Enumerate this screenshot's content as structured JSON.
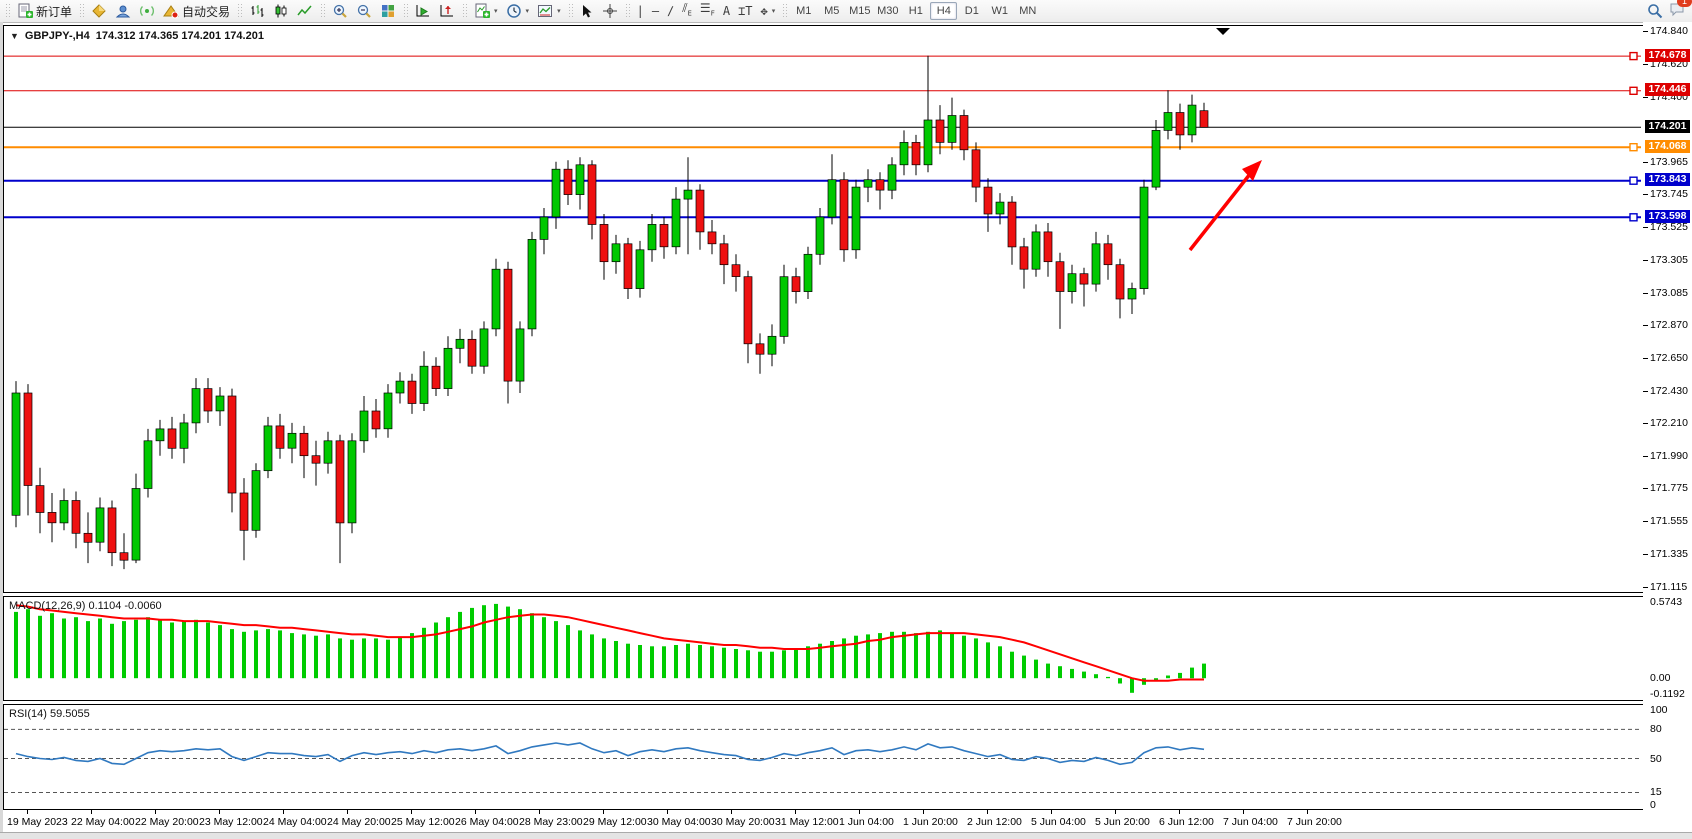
{
  "toolbar": {
    "new_order_label": "新订单",
    "autotrade_label": "自动交易",
    "dropdown_glyph": "▾",
    "timeframes": [
      "M1",
      "M5",
      "M15",
      "M30",
      "H1",
      "H4",
      "D1",
      "W1",
      "MN"
    ],
    "active_timeframe": "H4",
    "notification_count": "1"
  },
  "chart_header": {
    "toggle_glyph": "▼",
    "symbol_period": "GBPJPY-,H4",
    "ohlc": "174.312 174.365 174.201 174.201"
  },
  "price_axis": {
    "ticks": [
      "174.840",
      "174.620",
      "174.400",
      "173.965",
      "173.745",
      "173.525",
      "173.305",
      "173.085",
      "172.870",
      "172.650",
      "172.430",
      "172.210",
      "171.990",
      "171.775",
      "171.555",
      "171.335",
      "171.115"
    ],
    "tags": [
      {
        "value": "174.678",
        "color": "#dd0000"
      },
      {
        "value": "174.446",
        "color": "#dd0000"
      },
      {
        "value": "174.201",
        "color": "#000000"
      },
      {
        "value": "174.068",
        "color": "#ff8c00"
      },
      {
        "value": "173.843",
        "color": "#0000cc"
      },
      {
        "value": "173.598",
        "color": "#0000cc"
      }
    ]
  },
  "time_axis": {
    "labels": [
      "19 May 2023",
      "22 May 04:00",
      "22 May 20:00",
      "23 May 12:00",
      "24 May 04:00",
      "24 May 20:00",
      "25 May 12:00",
      "26 May 04:00",
      "28 May 23:00",
      "29 May 12:00",
      "30 May 04:00",
      "30 May 20:00",
      "31 May 12:00",
      "1 Jun 04:00",
      "1 Jun 20:00",
      "2 Jun 12:00",
      "5 Jun 04:00",
      "5 Jun 20:00",
      "6 Jun 12:00",
      "7 Jun 04:00",
      "7 Jun 20:00"
    ]
  },
  "macd_panel": {
    "label": "MACD(12,26,9)",
    "values": "0.1104 -0.0060",
    "axis_max": "0.5743",
    "axis_zero": "0.00",
    "axis_min": "-0.1192"
  },
  "rsi_panel": {
    "label": "RSI(14) 59.5055"
  },
  "chart_data": [
    {
      "type": "candlestick",
      "title": "GBPJPY-,H4",
      "last_ohlc": [
        174.312,
        174.365,
        174.201,
        174.201
      ],
      "price_range": [
        171.1,
        174.88
      ],
      "up_color": "#00c800",
      "down_color": "#ee1111",
      "candles": [
        [
          171.6,
          172.5,
          171.52,
          172.42
        ],
        [
          172.42,
          172.48,
          171.6,
          171.8
        ],
        [
          171.8,
          171.92,
          171.48,
          171.62
        ],
        [
          171.62,
          171.75,
          171.42,
          171.55
        ],
        [
          171.55,
          171.78,
          171.5,
          171.7
        ],
        [
          171.7,
          171.76,
          171.38,
          171.48
        ],
        [
          171.48,
          171.62,
          171.28,
          171.42
        ],
        [
          171.42,
          171.72,
          171.36,
          171.65
        ],
        [
          171.65,
          171.7,
          171.26,
          171.35
        ],
        [
          171.35,
          171.48,
          171.24,
          171.3
        ],
        [
          171.3,
          171.88,
          171.28,
          171.78
        ],
        [
          171.78,
          172.18,
          171.72,
          172.1
        ],
        [
          172.1,
          172.24,
          172.0,
          172.18
        ],
        [
          172.18,
          172.26,
          171.98,
          172.05
        ],
        [
          172.05,
          172.28,
          171.95,
          172.22
        ],
        [
          172.22,
          172.52,
          172.15,
          172.45
        ],
        [
          172.45,
          172.52,
          172.22,
          172.3
        ],
        [
          172.3,
          172.46,
          172.2,
          172.4
        ],
        [
          172.4,
          172.45,
          171.62,
          171.75
        ],
        [
          171.75,
          171.85,
          171.3,
          171.5
        ],
        [
          171.5,
          171.95,
          171.45,
          171.9
        ],
        [
          171.9,
          172.26,
          171.85,
          172.2
        ],
        [
          172.2,
          172.28,
          171.98,
          172.05
        ],
        [
          172.05,
          172.22,
          171.95,
          172.15
        ],
        [
          172.15,
          172.2,
          171.85,
          172.0
        ],
        [
          172.0,
          172.1,
          171.8,
          171.95
        ],
        [
          171.95,
          172.16,
          171.88,
          172.1
        ],
        [
          172.1,
          172.14,
          171.28,
          171.55
        ],
        [
          171.55,
          172.15,
          171.48,
          172.1
        ],
        [
          172.1,
          172.4,
          172.02,
          172.3
        ],
        [
          172.3,
          172.38,
          172.12,
          172.18
        ],
        [
          172.18,
          172.48,
          172.12,
          172.42
        ],
        [
          172.42,
          172.56,
          172.35,
          172.5
        ],
        [
          172.5,
          172.55,
          172.28,
          172.35
        ],
        [
          172.35,
          172.7,
          172.3,
          172.6
        ],
        [
          172.6,
          172.66,
          172.4,
          172.45
        ],
        [
          172.45,
          172.8,
          172.4,
          172.72
        ],
        [
          172.72,
          172.85,
          172.62,
          172.78
        ],
        [
          172.78,
          172.84,
          172.55,
          172.6
        ],
        [
          172.6,
          172.9,
          172.55,
          172.85
        ],
        [
          172.85,
          173.32,
          172.8,
          173.25
        ],
        [
          173.25,
          173.3,
          172.35,
          172.5
        ],
        [
          172.5,
          172.9,
          172.42,
          172.85
        ],
        [
          172.85,
          173.5,
          172.8,
          173.45
        ],
        [
          173.45,
          173.66,
          173.35,
          173.6
        ],
        [
          173.6,
          173.97,
          173.52,
          173.92
        ],
        [
          173.92,
          173.98,
          173.68,
          173.75
        ],
        [
          173.75,
          174.0,
          173.65,
          173.95
        ],
        [
          173.95,
          173.98,
          173.45,
          173.55
        ],
        [
          173.55,
          173.62,
          173.18,
          173.3
        ],
        [
          173.3,
          173.48,
          173.22,
          173.42
        ],
        [
          173.42,
          173.46,
          173.05,
          173.12
        ],
        [
          173.12,
          173.44,
          173.06,
          173.38
        ],
        [
          173.38,
          173.62,
          173.3,
          173.55
        ],
        [
          173.55,
          173.6,
          173.32,
          173.4
        ],
        [
          173.4,
          173.8,
          173.35,
          173.72
        ],
        [
          173.72,
          174.0,
          173.35,
          173.78
        ],
        [
          173.78,
          173.82,
          173.38,
          173.5
        ],
        [
          173.5,
          173.58,
          173.35,
          173.42
        ],
        [
          173.42,
          173.48,
          173.15,
          173.28
        ],
        [
          173.28,
          173.35,
          173.1,
          173.2
        ],
        [
          173.2,
          173.24,
          172.62,
          172.75
        ],
        [
          172.75,
          172.82,
          172.55,
          172.68
        ],
        [
          172.68,
          172.88,
          172.6,
          172.8
        ],
        [
          172.8,
          173.28,
          172.75,
          173.2
        ],
        [
          173.2,
          173.26,
          173.02,
          173.1
        ],
        [
          173.1,
          173.4,
          173.05,
          173.35
        ],
        [
          173.35,
          173.66,
          173.28,
          173.6
        ],
        [
          173.6,
          174.02,
          173.55,
          173.85
        ],
        [
          173.85,
          173.9,
          173.3,
          173.38
        ],
        [
          173.38,
          173.85,
          173.32,
          173.8
        ],
        [
          173.8,
          173.92,
          173.7,
          173.85
        ],
        [
          173.85,
          173.9,
          173.65,
          173.78
        ],
        [
          173.78,
          174.0,
          173.72,
          173.95
        ],
        [
          173.95,
          174.18,
          173.88,
          174.1
        ],
        [
          174.1,
          174.15,
          173.88,
          173.95
        ],
        [
          173.95,
          174.68,
          173.9,
          174.25
        ],
        [
          174.25,
          174.35,
          174.02,
          174.1
        ],
        [
          174.1,
          174.4,
          174.05,
          174.28
        ],
        [
          174.28,
          174.32,
          173.98,
          174.05
        ],
        [
          174.05,
          174.1,
          173.7,
          173.8
        ],
        [
          173.8,
          173.86,
          173.5,
          173.62
        ],
        [
          173.62,
          173.76,
          173.55,
          173.7
        ],
        [
          173.7,
          173.74,
          173.28,
          173.4
        ],
        [
          173.4,
          173.46,
          173.12,
          173.25
        ],
        [
          173.25,
          173.55,
          173.2,
          173.5
        ],
        [
          173.5,
          173.56,
          173.2,
          173.3
        ],
        [
          173.3,
          173.36,
          172.85,
          173.1
        ],
        [
          173.1,
          173.28,
          173.02,
          173.22
        ],
        [
          173.22,
          173.26,
          173.0,
          173.15
        ],
        [
          173.15,
          173.5,
          173.1,
          173.42
        ],
        [
          173.42,
          173.48,
          173.18,
          173.28
        ],
        [
          173.28,
          173.32,
          172.92,
          173.05
        ],
        [
          173.05,
          173.16,
          172.95,
          173.12
        ],
        [
          173.12,
          173.85,
          173.08,
          173.8
        ],
        [
          173.8,
          174.25,
          173.78,
          174.18
        ],
        [
          174.18,
          174.45,
          174.12,
          174.3
        ],
        [
          174.3,
          174.36,
          174.05,
          174.15
        ],
        [
          174.15,
          174.42,
          174.1,
          174.35
        ],
        [
          174.312,
          174.365,
          174.201,
          174.201
        ]
      ],
      "horizontal_lines": [
        {
          "price": 174.678,
          "color": "#dd0000",
          "width": 1,
          "handle": true
        },
        {
          "price": 174.446,
          "color": "#dd0000",
          "width": 1,
          "handle": true
        },
        {
          "price": 174.201,
          "color": "#000000",
          "width": 1,
          "handle": false
        },
        {
          "price": 174.068,
          "color": "#ff8c00",
          "width": 2,
          "handle": true
        },
        {
          "price": 173.843,
          "color": "#0000cc",
          "width": 2,
          "handle": true
        },
        {
          "price": 173.598,
          "color": "#0000cc",
          "width": 2,
          "handle": true
        }
      ],
      "annotation_arrow": {
        "color": "#ff0000",
        "from_price": 173.41,
        "to_price": 173.99,
        "direction": "up-right"
      }
    },
    {
      "type": "bar",
      "name": "MACD(12,26,9)",
      "current_values": [
        0.1104,
        -0.006
      ],
      "ylim": [
        -0.1192,
        0.5743
      ],
      "histogram_color": "#00cc00",
      "signal_color": "#ff0000",
      "histogram": [
        0.5,
        0.52,
        0.47,
        0.49,
        0.45,
        0.46,
        0.43,
        0.45,
        0.41,
        0.43,
        0.44,
        0.46,
        0.44,
        0.42,
        0.43,
        0.44,
        0.42,
        0.4,
        0.37,
        0.35,
        0.36,
        0.37,
        0.36,
        0.34,
        0.33,
        0.32,
        0.33,
        0.3,
        0.29,
        0.3,
        0.3,
        0.29,
        0.31,
        0.34,
        0.38,
        0.42,
        0.46,
        0.5,
        0.53,
        0.55,
        0.56,
        0.54,
        0.52,
        0.49,
        0.46,
        0.43,
        0.4,
        0.36,
        0.33,
        0.3,
        0.28,
        0.26,
        0.25,
        0.24,
        0.24,
        0.25,
        0.26,
        0.25,
        0.24,
        0.23,
        0.22,
        0.21,
        0.2,
        0.2,
        0.21,
        0.22,
        0.24,
        0.26,
        0.28,
        0.3,
        0.32,
        0.33,
        0.34,
        0.35,
        0.35,
        0.34,
        0.35,
        0.36,
        0.34,
        0.32,
        0.3,
        0.27,
        0.24,
        0.2,
        0.17,
        0.14,
        0.11,
        0.09,
        0.07,
        0.05,
        0.03,
        0.01,
        -0.04,
        -0.11,
        -0.05,
        -0.02,
        0.02,
        0.04,
        0.08,
        0.11
      ],
      "signal": [
        0.55,
        0.54,
        0.52,
        0.51,
        0.5,
        0.49,
        0.48,
        0.47,
        0.46,
        0.45,
        0.45,
        0.45,
        0.44,
        0.44,
        0.43,
        0.43,
        0.43,
        0.42,
        0.41,
        0.4,
        0.4,
        0.39,
        0.38,
        0.38,
        0.37,
        0.36,
        0.35,
        0.34,
        0.33,
        0.33,
        0.32,
        0.31,
        0.31,
        0.31,
        0.32,
        0.33,
        0.35,
        0.37,
        0.39,
        0.42,
        0.44,
        0.46,
        0.47,
        0.48,
        0.48,
        0.47,
        0.46,
        0.44,
        0.42,
        0.4,
        0.38,
        0.36,
        0.34,
        0.32,
        0.3,
        0.29,
        0.28,
        0.27,
        0.26,
        0.25,
        0.25,
        0.24,
        0.23,
        0.23,
        0.22,
        0.22,
        0.22,
        0.23,
        0.24,
        0.25,
        0.26,
        0.28,
        0.29,
        0.31,
        0.32,
        0.33,
        0.34,
        0.34,
        0.34,
        0.34,
        0.33,
        0.32,
        0.31,
        0.29,
        0.27,
        0.24,
        0.21,
        0.18,
        0.15,
        0.12,
        0.09,
        0.06,
        0.03,
        0.0,
        -0.02,
        -0.02,
        -0.02,
        -0.01,
        -0.01,
        -0.01
      ]
    },
    {
      "type": "line",
      "name": "RSI(14)",
      "last_value": 59.5055,
      "ylim": [
        0,
        100
      ],
      "levels": [
        80,
        50,
        15
      ],
      "axis_labels": [
        "100",
        "80",
        "50",
        "15",
        "0"
      ],
      "color": "#3079c0",
      "values": [
        55,
        52,
        50,
        49,
        51,
        48,
        47,
        50,
        45,
        44,
        50,
        56,
        58,
        57,
        58,
        60,
        59,
        60,
        52,
        48,
        52,
        56,
        55,
        55,
        53,
        52,
        54,
        47,
        53,
        56,
        54,
        56,
        57,
        55,
        58,
        56,
        59,
        60,
        58,
        60,
        63,
        55,
        58,
        62,
        64,
        66,
        64,
        66,
        60,
        56,
        58,
        53,
        57,
        59,
        57,
        60,
        61,
        58,
        56,
        54,
        53,
        49,
        48,
        51,
        55,
        53,
        56,
        58,
        61,
        54,
        58,
        59,
        57,
        59,
        62,
        59,
        65,
        61,
        62,
        58,
        55,
        52,
        54,
        49,
        48,
        52,
        50,
        46,
        48,
        47,
        51,
        48,
        44,
        46,
        56,
        61,
        62,
        59,
        61,
        59.5
      ]
    }
  ]
}
